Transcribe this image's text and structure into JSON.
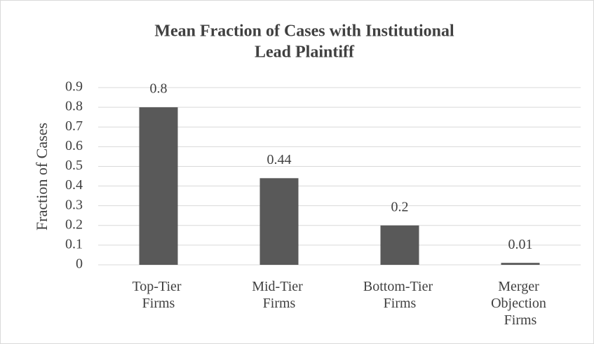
{
  "chart_data": {
    "type": "bar",
    "title": [
      "Mean Fraction of Cases with Institutional",
      "Lead Plaintiff"
    ],
    "y_label": "Fraction of Cases",
    "categories": [
      "Top-Tier Firms",
      "Mid-Tier Firms",
      "Bottom-Tier Firms",
      "Merger Objection Firms"
    ],
    "values": [
      0.8,
      0.44,
      0.2,
      0.01
    ],
    "color": "#595959",
    "ylim": [
      0,
      0.9
    ],
    "yticks": [
      0,
      0.1,
      0.2,
      0.3,
      0.4,
      0.5,
      0.6,
      0.7,
      0.8,
      0.9
    ],
    "grid": true
  }
}
